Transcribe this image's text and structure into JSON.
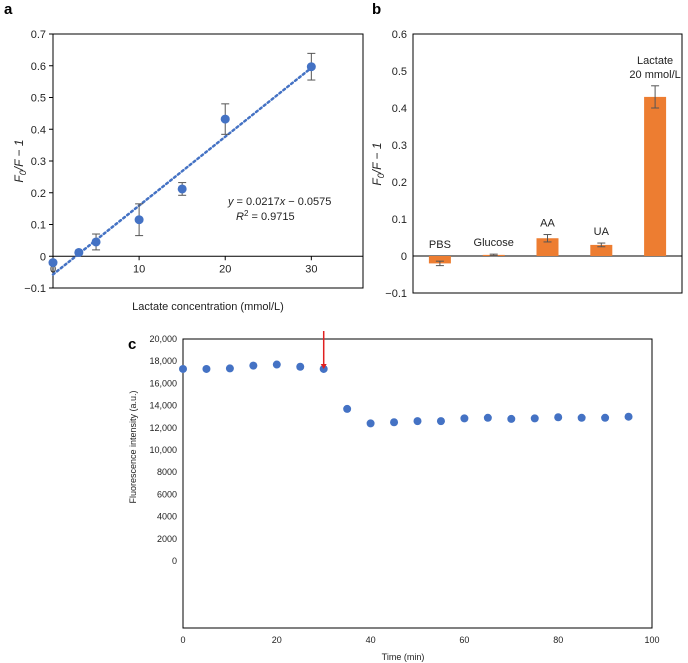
{
  "colors": {
    "point": "#4472c4",
    "bar": "#ed7d31",
    "trend": "#4472c4",
    "arrow": "#e02020",
    "axis": "#000000",
    "errbar": "#555555"
  },
  "panels": {
    "a": "a",
    "b": "b",
    "c": "c"
  },
  "chart_data": [
    {
      "id": "a",
      "type": "scatter",
      "xlabel": "Lactate concentration (mmol/L)",
      "ylabel_parts": {
        "main": "F",
        "sub": "0",
        "rest": "/F − 1"
      },
      "xlim": [
        0,
        36
      ],
      "ylim": [
        -0.1,
        0.7
      ],
      "xticks": [
        0,
        10,
        20,
        30
      ],
      "yticks": [
        -0.1,
        0,
        0.1,
        0.2,
        0.3,
        0.4,
        0.5,
        0.6,
        0.7
      ],
      "ytick_labels": [
        "−0.1",
        "0",
        "0.1",
        "0.2",
        "0.3",
        "0.4",
        "0.5",
        "0.6",
        "0.7"
      ],
      "x": [
        0,
        3,
        5,
        10,
        15,
        20,
        30
      ],
      "y": [
        -0.02,
        0.012,
        0.045,
        0.115,
        0.212,
        0.432,
        0.597
      ],
      "yerr": [
        0.0,
        0.0,
        0.025,
        0.05,
        0.02,
        0.048,
        0.042
      ],
      "trendline": {
        "slope": 0.0217,
        "intercept": -0.0575,
        "x_range": [
          0,
          30
        ]
      },
      "annotation_eq": {
        "y_sym": "y",
        "eq_mid": " = 0.0217",
        "x_sym": "x",
        "eq_end": " − 0.0575"
      },
      "annotation_r2": {
        "r": "R",
        "sup": "2",
        "rest": " = 0.9715"
      }
    },
    {
      "id": "b",
      "type": "bar",
      "ylabel_parts": {
        "main": "F",
        "sub": "0",
        "rest": "/F − 1"
      },
      "ylim": [
        -0.1,
        0.6
      ],
      "yticks": [
        -0.1,
        0,
        0.1,
        0.2,
        0.3,
        0.4,
        0.5,
        0.6
      ],
      "ytick_labels": [
        "−0.1",
        "0",
        "0.1",
        "0.2",
        "0.3",
        "0.4",
        "0.5",
        "0.6"
      ],
      "categories": [
        "PBS",
        "Glucose",
        "AA",
        "UA",
        "Lactate"
      ],
      "category_labels": [
        [
          "PBS"
        ],
        [
          "Glucose"
        ],
        [
          "AA"
        ],
        [
          "UA"
        ],
        [
          "Lactate",
          "20 mmol/L"
        ]
      ],
      "values": [
        -0.02,
        0.003,
        0.048,
        0.03,
        0.43
      ],
      "yerr": [
        0.006,
        0.002,
        0.01,
        0.005,
        0.03
      ]
    },
    {
      "id": "c",
      "type": "scatter",
      "xlabel": "Time (min)",
      "ylabel": "Fluorescence intensity (a.u.)",
      "xlim": [
        0,
        100
      ],
      "xticks": [
        0,
        20,
        40,
        60,
        80,
        100
      ],
      "ytick_values": [
        0,
        2000,
        4000,
        6000,
        8000,
        10000,
        12000,
        14000,
        16000,
        18000,
        20000
      ],
      "ytick_labels": [
        "0",
        "2000",
        "4000",
        "6000",
        "8000",
        "10,000",
        "12,000",
        "14,000",
        "16,000",
        "18,000",
        "20,000"
      ],
      "x": [
        0,
        5,
        10,
        15,
        20,
        25,
        30,
        35,
        40,
        45,
        50,
        55,
        60,
        65,
        70,
        75,
        80,
        85,
        90,
        95
      ],
      "y": [
        17300,
        17300,
        17350,
        17600,
        17700,
        17500,
        17300,
        13700,
        12400,
        12500,
        12600,
        12600,
        12850,
        12900,
        12800,
        12850,
        12950,
        12900,
        12900,
        13000
      ],
      "arrow_at_x": 30
    }
  ]
}
